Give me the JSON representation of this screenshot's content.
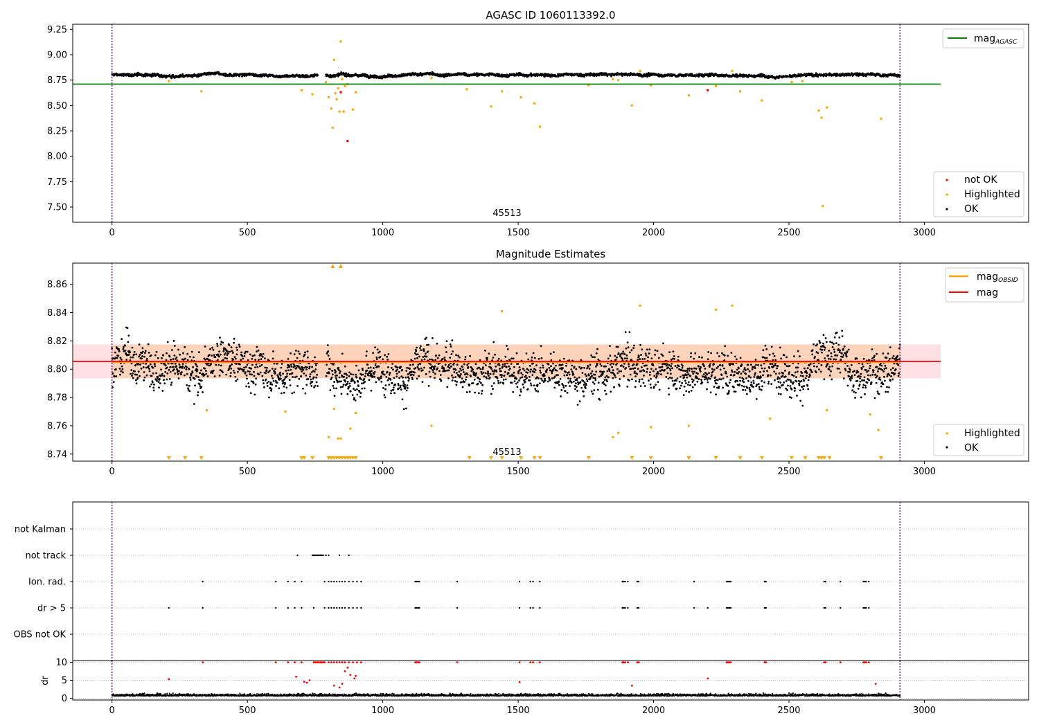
{
  "chart_data": [
    {
      "type": "scatter",
      "title": "AGASC ID 1060113392.0",
      "xlim": [
        -145,
        3385
      ],
      "ylim": [
        7.35,
        9.3
      ],
      "xticks": [
        "0",
        "500",
        "1000",
        "1500",
        "2000",
        "2500",
        "3000"
      ],
      "yticks": [
        "7.50",
        "7.75",
        "8.00",
        "8.25",
        "8.50",
        "8.75",
        "9.00",
        "9.25"
      ],
      "obsid_label": "45513",
      "obs_boundaries": [
        0,
        2910
      ],
      "reference_line": {
        "name": "mag_AGASC",
        "value": 8.71,
        "x_range": [
          -145,
          3060
        ],
        "color": "#008000"
      },
      "series": [
        {
          "name": "not OK",
          "color": "#ff0000",
          "x": [
            845,
            870,
            2200
          ],
          "y": [
            8.63,
            8.15,
            8.65
          ]
        },
        {
          "name": "Highlighted",
          "color": "#ffa500",
          "x": [
            210,
            330,
            700,
            740,
            790,
            800,
            810,
            815,
            820,
            825,
            830,
            835,
            840,
            845,
            850,
            855,
            860,
            870,
            890,
            900,
            1180,
            1310,
            1400,
            1440,
            1510,
            1560,
            1580,
            1760,
            1850,
            1870,
            1920,
            1950,
            1990,
            2130,
            2230,
            2290,
            2320,
            2400,
            2510,
            2550,
            2610,
            2620,
            2625,
            2640,
            2840
          ],
          "y": [
            8.74,
            8.64,
            8.65,
            8.61,
            8.73,
            8.58,
            8.47,
            8.28,
            8.95,
            8.62,
            8.56,
            8.67,
            8.44,
            9.13,
            8.76,
            8.44,
            8.69,
            8.71,
            8.46,
            8.63,
            8.77,
            8.66,
            8.49,
            8.64,
            8.58,
            8.52,
            8.29,
            8.7,
            8.76,
            8.75,
            8.5,
            8.84,
            8.7,
            8.6,
            8.69,
            8.84,
            8.64,
            8.55,
            8.73,
            8.74,
            8.45,
            8.38,
            7.51,
            8.48,
            8.37
          ]
        },
        {
          "name": "OK",
          "color": "#000000",
          "x_range": [
            0,
            2910
          ],
          "y_center": 8.8,
          "y_spread": 0.012,
          "gap": [
            760,
            790
          ],
          "points": 2600
        }
      ],
      "legend": {
        "placement": "lower right",
        "entries": [
          "not OK",
          "Highlighted",
          "OK"
        ]
      },
      "legend2": {
        "placement": "upper right",
        "entries": [
          "mag_AGASC"
        ]
      }
    },
    {
      "type": "scatter",
      "title": "Magnitude Estimates",
      "xlim": [
        -145,
        3385
      ],
      "ylim": [
        8.735,
        8.875
      ],
      "xticks": [
        "0",
        "500",
        "1000",
        "1500",
        "2000",
        "2500",
        "3000"
      ],
      "yticks": [
        "8.74",
        "8.76",
        "8.78",
        "8.80",
        "8.82",
        "8.84",
        "8.86"
      ],
      "obsid_label": "45513",
      "obs_boundaries": [
        0,
        2910
      ],
      "bands": [
        {
          "name": "mag band",
          "y0": 8.7935,
          "y1": 8.8175,
          "x_range": [
            -145,
            3060
          ],
          "color": "#ffe1e5"
        },
        {
          "name": "mag_OBSID band",
          "y0": 8.7935,
          "y1": 8.8175,
          "x_range": [
            0,
            2910
          ],
          "color": "#fdd3bb"
        }
      ],
      "lines": [
        {
          "name": "mag_OBSID",
          "value": 8.805,
          "x_range": [
            0,
            2910
          ],
          "color": "#ffa500"
        },
        {
          "name": "mag",
          "value": 8.8055,
          "x_range": [
            -145,
            3060
          ],
          "color": "#ff0000"
        }
      ],
      "series": [
        {
          "name": "Highlighted",
          "color": "#ffa500",
          "x": [
            350,
            640,
            800,
            820,
            835,
            845,
            880,
            900,
            1180,
            1440,
            1850,
            1870,
            1950,
            1990,
            2130,
            2230,
            2290,
            2430,
            2640,
            2800,
            2830
          ],
          "y": [
            8.771,
            8.77,
            8.752,
            8.772,
            8.751,
            8.751,
            8.758,
            8.769,
            8.76,
            8.841,
            8.752,
            8.755,
            8.845,
            8.759,
            8.76,
            8.842,
            8.845,
            8.765,
            8.771,
            8.768,
            8.757
          ]
        },
        {
          "name": "OK",
          "color": "#000000",
          "x_range": [
            0,
            2910
          ],
          "y_center": 8.803,
          "y_spread": 0.013,
          "gap": [
            760,
            790
          ],
          "points": 2600
        }
      ],
      "clipped_markers": {
        "color": "#ffa500",
        "bottom_x": [
          210,
          270,
          330,
          700,
          710,
          740,
          800,
          810,
          820,
          830,
          840,
          850,
          860,
          870,
          880,
          890,
          900,
          1320,
          1400,
          1440,
          1510,
          1560,
          1580,
          1760,
          1920,
          1990,
          2130,
          2230,
          2320,
          2400,
          2510,
          2560,
          2610,
          2620,
          2630,
          2650,
          2840
        ],
        "top_x": [
          815,
          845
        ]
      },
      "legend": {
        "placement": "lower right",
        "entries": [
          "Highlighted",
          "OK"
        ]
      },
      "legend2": {
        "placement": "upper right",
        "entries": [
          "mag_OBSID",
          "mag"
        ]
      }
    },
    {
      "type": "scatter",
      "title": "",
      "xlim": [
        -145,
        3385
      ],
      "categories": [
        "OBS not OK",
        "dr > 5",
        "Ion. rad.",
        "not track",
        "not Kalman"
      ],
      "obs_boundaries": [
        0,
        2910
      ],
      "flag_x": {
        "not Kalman": [],
        "not track": [
          685,
          740,
          745,
          750,
          755,
          760,
          765,
          770,
          775,
          780,
          790,
          800,
          840,
          875
        ],
        "Ion. rad.": [
          335,
          605,
          650,
          675,
          700,
          785,
          800,
          810,
          820,
          830,
          840,
          850,
          860,
          875,
          890,
          905,
          920,
          1120,
          1125,
          1130,
          1135,
          1275,
          1505,
          1545,
          1555,
          1580,
          1885,
          1890,
          1895,
          1905,
          1940,
          1945,
          2150,
          2270,
          2275,
          2280,
          2285,
          2410,
          2415,
          2630,
          2635,
          2690,
          2775,
          2780,
          2785,
          2795
        ],
        "dr > 5": [
          210,
          335,
          605,
          650,
          675,
          700,
          745,
          785,
          800,
          810,
          820,
          830,
          840,
          850,
          860,
          875,
          890,
          905,
          920,
          1120,
          1125,
          1130,
          1135,
          1275,
          1505,
          1545,
          1555,
          1580,
          1885,
          1890,
          1895,
          1905,
          1940,
          1945,
          2150,
          2200,
          2270,
          2275,
          2280,
          2285,
          2410,
          2415,
          2630,
          2635,
          2690,
          2775,
          2780,
          2785,
          2795
        ],
        "OBS not OK": []
      }
    },
    {
      "type": "scatter",
      "title": "",
      "xlim": [
        -145,
        3385
      ],
      "ylim": [
        -0.5,
        10.5
      ],
      "ylabel": "dr",
      "xticks": [
        "0",
        "500",
        "1000",
        "1500",
        "2000",
        "2500",
        "3000"
      ],
      "yticks": [
        "0",
        "5",
        "10"
      ],
      "obs_boundaries": [
        0,
        2910
      ],
      "series": [
        {
          "name": "flagged",
          "color": "#ff0000",
          "x_at_10": [
            335,
            605,
            650,
            675,
            700,
            745,
            750,
            755,
            760,
            765,
            770,
            775,
            780,
            785,
            800,
            810,
            820,
            830,
            840,
            850,
            860,
            875,
            890,
            905,
            920,
            1120,
            1125,
            1130,
            1135,
            1275,
            1505,
            1545,
            1555,
            1580,
            1885,
            1890,
            1895,
            1905,
            1940,
            1945,
            2270,
            2275,
            2280,
            2285,
            2410,
            2415,
            2630,
            2635,
            2690,
            2775,
            2780,
            2785,
            2795
          ],
          "x": [
            210,
            680,
            710,
            720,
            730,
            820,
            840,
            850,
            860,
            870,
            880,
            895,
            900,
            1505,
            1920,
            2200,
            2820
          ],
          "y": [
            5.3,
            6.0,
            4.6,
            4.3,
            5.0,
            3.5,
            3.0,
            4.0,
            7.5,
            8.5,
            6.5,
            5.5,
            6.2,
            4.5,
            3.5,
            5.5,
            4.0
          ]
        },
        {
          "name": "OK",
          "color": "#000000",
          "x_range": [
            0,
            2910
          ],
          "y_center": 0.8,
          "y_spread": 0.5,
          "points": 2600
        }
      ]
    }
  ],
  "legend_labels": {
    "mag_agasc_base": "mag",
    "mag_agasc_sub": "AGASC",
    "mag_obsid_base": "mag",
    "mag_obsid_sub": "OBSID",
    "mag": "mag",
    "not_ok": "not OK",
    "highlighted": "Highlighted",
    "ok": "OK"
  },
  "colors": {
    "ok": "#000000",
    "highlighted": "#ffa500",
    "not_ok": "#ff0000",
    "agasc_line": "#008000",
    "boundary": "#800080",
    "band_mag": "#ffe1e5",
    "band_obsid": "#fdd3bb"
  }
}
